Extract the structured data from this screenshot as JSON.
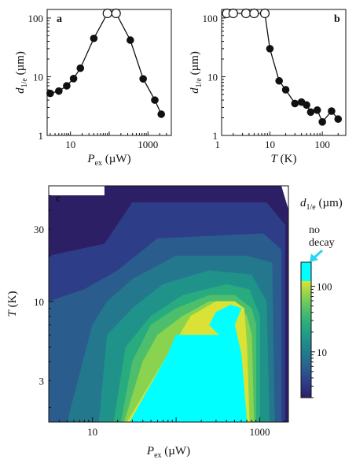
{
  "chart_data": [
    {
      "type": "line",
      "panel": "a",
      "scale": {
        "x": "log",
        "y": "log"
      },
      "xlim": [
        2.5,
        4000
      ],
      "ylim": [
        1,
        140
      ],
      "x_ticks": [
        10,
        1000
      ],
      "x_tick_labels": [
        "10",
        "1000"
      ],
      "y_ticks": [
        1,
        10,
        100
      ],
      "y_tick_labels": [
        "1",
        "10",
        "100"
      ],
      "xlabel_main": "P",
      "xlabel_sub": "ex",
      "xlabel_unit": "(µW)",
      "ylabel_main": "d",
      "ylabel_sub": "1/e",
      "ylabel_unit": "(µm)",
      "series": [
        {
          "x": [
            3,
            5,
            8,
            12,
            18,
            40,
            90,
            150,
            350,
            750,
            1500,
            2200
          ],
          "y": [
            5.2,
            5.7,
            7,
            9.3,
            14,
            45,
            120,
            120,
            42,
            9.2,
            4,
            2.3
          ],
          "marker": [
            "filled",
            "filled",
            "filled",
            "filled",
            "filled",
            "filled",
            "open",
            "open",
            "filled",
            "filled",
            "filled",
            "filled"
          ]
        }
      ]
    },
    {
      "type": "line",
      "panel": "b",
      "scale": {
        "x": "log",
        "y": "log"
      },
      "xlim": [
        1.2,
        280
      ],
      "ylim": [
        1,
        140
      ],
      "x_ticks": [
        1,
        10,
        100
      ],
      "x_tick_labels": [
        "1",
        "10",
        "100"
      ],
      "y_ticks": [
        1,
        10,
        100
      ],
      "y_tick_labels": [
        "1",
        "10",
        "100"
      ],
      "xlabel_main": "T",
      "xlabel_unit": "(K)",
      "ylabel_main": "d",
      "ylabel_sub": "1/e",
      "ylabel_unit": "(µm)",
      "series": [
        {
          "x": [
            1.5,
            2,
            3.5,
            5,
            8,
            10,
            15,
            20,
            30,
            40,
            50,
            60,
            80,
            100,
            150,
            200
          ],
          "y": [
            120,
            120,
            120,
            120,
            120,
            30,
            8.5,
            6,
            3.5,
            3.7,
            3.3,
            2.5,
            2.7,
            1.7,
            2.6,
            1.9
          ],
          "marker": [
            "open",
            "open",
            "open",
            "open",
            "open",
            "filled",
            "filled",
            "filled",
            "filled",
            "filled",
            "filled",
            "filled",
            "filled",
            "filled",
            "filled",
            "filled"
          ]
        }
      ]
    },
    {
      "type": "heatmap",
      "panel": "c",
      "scale": {
        "x": "log",
        "y": "log"
      },
      "xlim": [
        3,
        2200
      ],
      "ylim": [
        1.6,
        58
      ],
      "x_ticks": [
        10,
        1000
      ],
      "x_tick_labels": [
        "10",
        "1000"
      ],
      "y_ticks": [
        3,
        10,
        30
      ],
      "y_tick_labels": [
        "3",
        "10",
        "30"
      ],
      "xlabel_main": "P",
      "xlabel_sub": "ex",
      "xlabel_unit": "(µW)",
      "ylabel_main": "T",
      "ylabel_unit": "(K)",
      "colorbar": {
        "title_main": "d",
        "title_sub": "1/e",
        "title_unit": "(µm)",
        "scale": "log",
        "range": [
          2,
          120
        ],
        "tick_values": [
          10,
          100
        ],
        "tick_labels": [
          "10",
          "100"
        ],
        "no_decay_label": [
          "no",
          "decay"
        ],
        "no_decay_color": "#00ffff",
        "arrow_color": "#2ad4f4"
      },
      "levels": [
        {
          "value": 2.3,
          "color": "#2c1f66"
        },
        {
          "value": 3.2,
          "color": "#2e3d88"
        },
        {
          "value": 4.5,
          "color": "#2a5d8e"
        },
        {
          "value": 6.3,
          "color": "#23788d"
        },
        {
          "value": 9,
          "color": "#1f938a"
        },
        {
          "value": 13,
          "color": "#27ab7f"
        },
        {
          "value": 20,
          "color": "#4dbf6c"
        },
        {
          "value": 35,
          "color": "#8ad34f"
        },
        {
          "value": 70,
          "color": "#dae235"
        },
        {
          "value": 999,
          "color": "#00ffff"
        }
      ],
      "regions": [
        {
          "level": 0,
          "points": [
            [
              3,
              1.6
            ],
            [
              2200,
              1.6
            ],
            [
              2200,
              40
            ],
            [
              1800,
              58
            ],
            [
              14,
              58
            ],
            [
              14,
              50
            ],
            [
              3,
              50
            ]
          ]
        },
        {
          "level": 1,
          "points": [
            [
              3,
              1.6
            ],
            [
              2000,
              1.6
            ],
            [
              2000,
              32
            ],
            [
              1200,
              45
            ],
            [
              30,
              45
            ],
            [
              14,
              24
            ],
            [
              3,
              20
            ]
          ]
        },
        {
          "level": 2,
          "points": [
            [
              3,
              1.6
            ],
            [
              1800,
              1.6
            ],
            [
              1800,
              22
            ],
            [
              1100,
              28
            ],
            [
              60,
              26
            ],
            [
              20,
              16
            ],
            [
              8,
              12
            ],
            [
              3,
              10
            ]
          ]
        },
        {
          "level": 3,
          "points": [
            [
              5,
              1.6
            ],
            [
              1500,
              1.6
            ],
            [
              1400,
              18
            ],
            [
              700,
              20
            ],
            [
              100,
              20
            ],
            [
              30,
              14
            ],
            [
              15,
              10
            ],
            [
              10,
              7
            ]
          ]
        },
        {
          "level": 4,
          "points": [
            [
              12,
              1.6
            ],
            [
              1300,
              1.6
            ],
            [
              1200,
              10
            ],
            [
              800,
              15
            ],
            [
              250,
              16
            ],
            [
              70,
              13
            ],
            [
              30,
              9
            ],
            [
              15,
              6
            ]
          ]
        },
        {
          "level": 5,
          "points": [
            [
              18,
              1.6
            ],
            [
              1000,
              1.6
            ],
            [
              1000,
              8
            ],
            [
              750,
              12
            ],
            [
              400,
              13
            ],
            [
              120,
              11
            ],
            [
              50,
              8
            ],
            [
              25,
              5
            ]
          ]
        },
        {
          "level": 6,
          "points": [
            [
              22,
              1.6
            ],
            [
              900,
              1.6
            ],
            [
              900,
              7
            ],
            [
              800,
              9
            ],
            [
              500,
              11
            ],
            [
              250,
              11
            ],
            [
              100,
              9
            ],
            [
              50,
              7
            ],
            [
              30,
              4
            ]
          ]
        },
        {
          "level": 7,
          "points": [
            [
              24,
              1.6
            ],
            [
              850,
              1.6
            ],
            [
              800,
              6
            ],
            [
              700,
              8
            ],
            [
              500,
              10
            ],
            [
              250,
              10
            ],
            [
              120,
              8
            ],
            [
              60,
              6
            ],
            [
              40,
              4
            ]
          ]
        },
        {
          "level": 8,
          "points": [
            [
              26,
              1.6
            ],
            [
              750,
              1.6
            ],
            [
              700,
              5
            ],
            [
              650,
              9
            ],
            [
              500,
              10
            ],
            [
              300,
              10
            ],
            [
              150,
              8
            ],
            [
              90,
              5
            ]
          ]
        },
        {
          "level": 9,
          "points": [
            [
              28,
              1.6
            ],
            [
              700,
              1.6
            ],
            [
              600,
              4.5
            ],
            [
              500,
              7
            ],
            [
              600,
              9
            ],
            [
              450,
              9.5
            ],
            [
              300,
              8.5
            ],
            [
              250,
              7
            ],
            [
              330,
              6
            ],
            [
              100,
              6
            ],
            [
              80,
              4.5
            ]
          ]
        }
      ]
    }
  ],
  "panel_letters": [
    "a",
    "b",
    "c"
  ]
}
